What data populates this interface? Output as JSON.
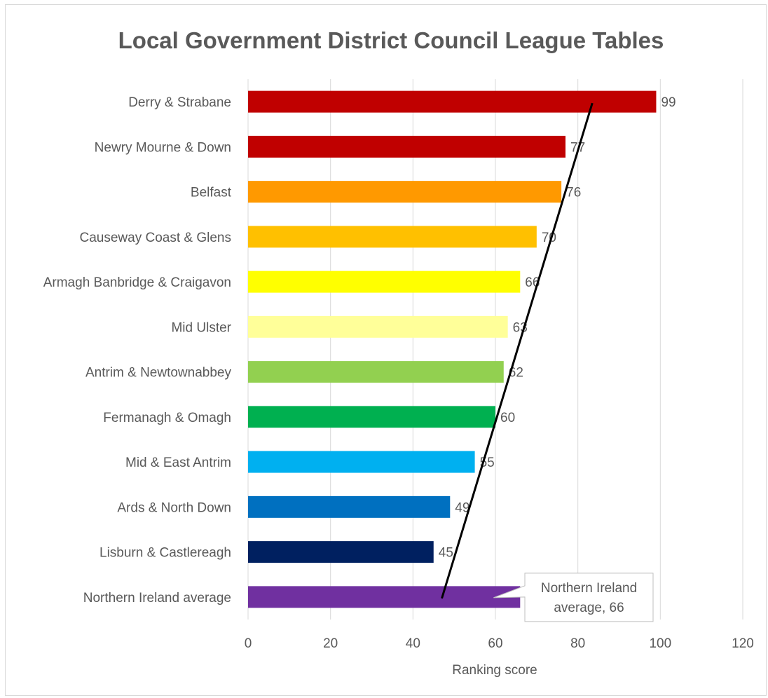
{
  "chart_data": {
    "type": "bar",
    "orientation": "horizontal",
    "title": "Local Government District Council League Tables",
    "xlabel": "Ranking score",
    "ylabel": "",
    "xlim": [
      0,
      120
    ],
    "x_ticks": [
      0,
      20,
      40,
      60,
      80,
      100,
      120
    ],
    "grid": "vertical major gridlines",
    "legend": "none",
    "categories": [
      "Derry & Strabane",
      "Newry Mourne & Down",
      "Belfast",
      "Causeway Coast & Glens",
      "Armagh Banbridge & Craigavon",
      "Mid Ulster",
      "Antrim & Newtownabbey",
      "Fermanagh & Omagh",
      "Mid & East Antrim",
      "Ards & North Down",
      "Lisburn & Castlereagh",
      "Northern Ireland average"
    ],
    "values": [
      99,
      77,
      76,
      70,
      66,
      63,
      62,
      60,
      55,
      49,
      45,
      66
    ],
    "data_labels": [
      "99",
      "77",
      "76",
      "70",
      "66",
      "63",
      "62",
      "60",
      "55",
      "49",
      "45",
      ""
    ],
    "bar_colors": [
      "#c00000",
      "#c00000",
      "#ff9900",
      "#ffc000",
      "#ffff00",
      "#ffff99",
      "#92d050",
      "#00b050",
      "#00b0f0",
      "#0070c0",
      "#002060",
      "#7030a0"
    ],
    "callout": {
      "line1": "Northern Ireland",
      "line2": "average, 66",
      "category": "Northern Ireland average"
    },
    "trend_line": {
      "color": "#000000",
      "from": {
        "x": 47,
        "category": "Northern Ireland average"
      },
      "to": {
        "x": 83.5,
        "category": "Derry & Strabane"
      }
    }
  }
}
